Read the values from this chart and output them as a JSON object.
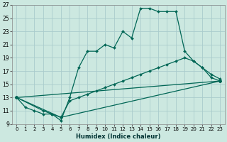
{
  "xlabel": "Humidex (Indice chaleur)",
  "bg_color": "#cce8e0",
  "grid_color": "#aacccc",
  "line_color": "#006655",
  "xlim": [
    -0.5,
    23.5
  ],
  "ylim": [
    9,
    27
  ],
  "xticks": [
    0,
    1,
    2,
    3,
    4,
    5,
    6,
    7,
    8,
    9,
    10,
    11,
    12,
    13,
    14,
    15,
    16,
    17,
    18,
    19,
    20,
    21,
    22,
    23
  ],
  "yticks": [
    9,
    11,
    13,
    15,
    17,
    19,
    21,
    23,
    25,
    27
  ],
  "line1_x": [
    0,
    1,
    2,
    3,
    4,
    5,
    6,
    7,
    8,
    9,
    10,
    11,
    12,
    13,
    14,
    15,
    16,
    17,
    18,
    19,
    20,
    21,
    22,
    23
  ],
  "line1_y": [
    13,
    11.5,
    11,
    10.5,
    10.5,
    9.5,
    13,
    17.5,
    20,
    20,
    21,
    20.5,
    23,
    22,
    26.5,
    26.5,
    26,
    26,
    26,
    20,
    18.5,
    17.5,
    16,
    15.5
  ],
  "line2_x": [
    0,
    3,
    4,
    5,
    6,
    7,
    8,
    9,
    10,
    11,
    12,
    13,
    14,
    15,
    16,
    17,
    18,
    19,
    20,
    21,
    22,
    23
  ],
  "line2_y": [
    13,
    11,
    10.5,
    10,
    12.5,
    13,
    13.5,
    14,
    14.5,
    15,
    15.5,
    16,
    16.5,
    17,
    17.5,
    18,
    18.5,
    19,
    18.5,
    17.5,
    16.5,
    15.8
  ],
  "line3_x": [
    0,
    23
  ],
  "line3_y": [
    13,
    15.5
  ],
  "line4_x": [
    0,
    5,
    23
  ],
  "line4_y": [
    13,
    10,
    15.5
  ]
}
